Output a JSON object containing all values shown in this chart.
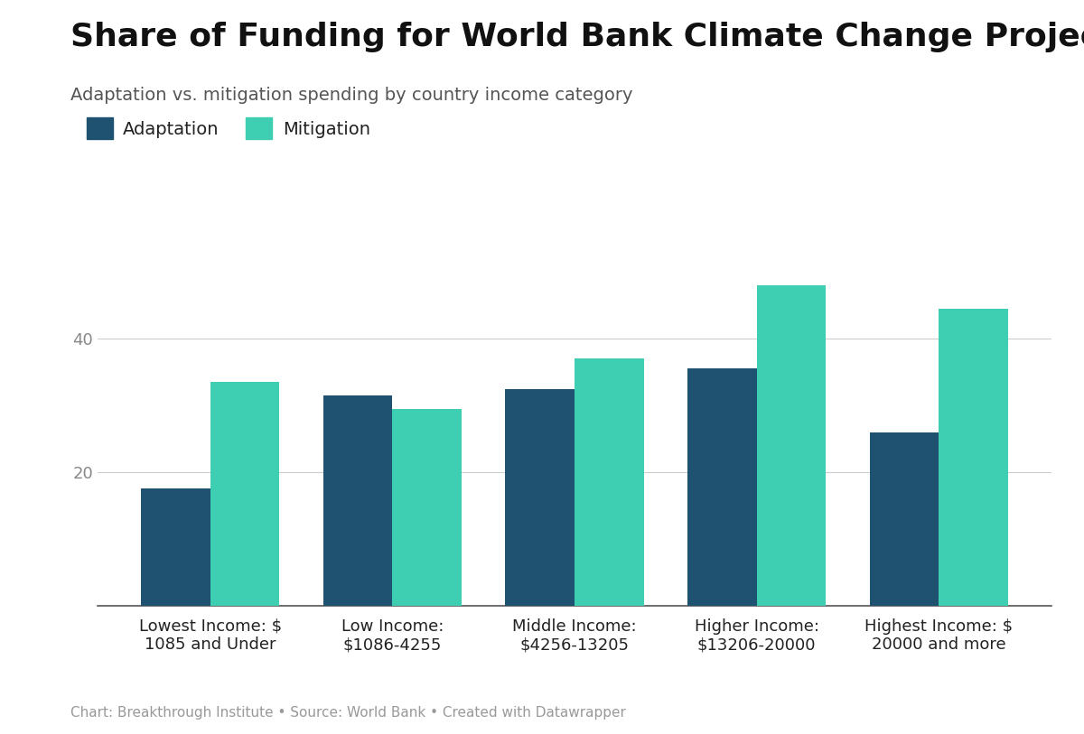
{
  "title": "Share of Funding for World Bank Climate Change Projects",
  "subtitle": "Adaptation vs. mitigation spending by country income category",
  "footer": "Chart: Breakthrough Institute • Source: World Bank • Created with Datawrapper",
  "categories": [
    "Lowest Income: $\n1085 and Under",
    "Low Income:\n$1086-4255",
    "Middle Income:\n$4256-13205",
    "Higher Income:\n$13206-20000",
    "Highest Income: $\n20000 and more"
  ],
  "adaptation_values": [
    17.5,
    31.5,
    32.5,
    35.5,
    26.0
  ],
  "mitigation_values": [
    33.5,
    29.5,
    37.0,
    48.0,
    44.5
  ],
  "adaptation_color": "#1f5270",
  "mitigation_color": "#3ecfb2",
  "background_color": "#ffffff",
  "ylim": [
    0,
    55
  ],
  "yticks": [
    20,
    40
  ],
  "bar_width": 0.38,
  "title_fontsize": 26,
  "subtitle_fontsize": 14,
  "legend_fontsize": 14,
  "tick_fontsize": 13,
  "footer_fontsize": 11
}
